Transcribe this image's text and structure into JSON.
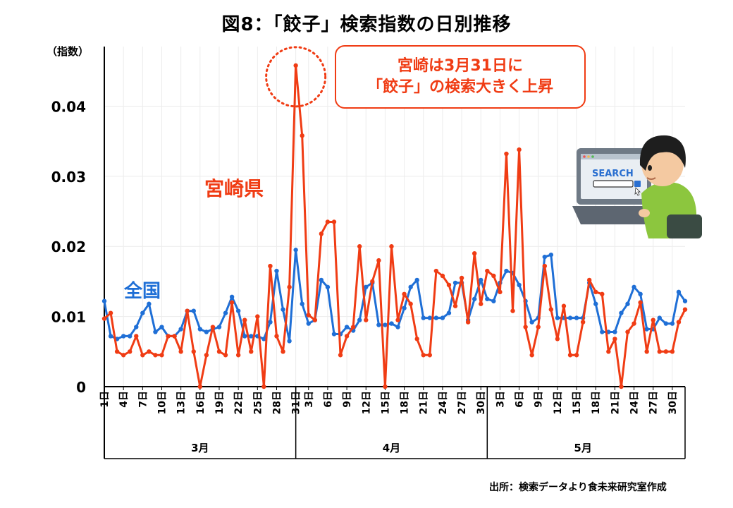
{
  "chart_data": {
    "type": "line",
    "title": "図8：「餃子」検索指数の日別推移",
    "ylabel": "（指数）",
    "ylim": [
      0,
      0.04
    ],
    "yticks": [
      {
        "value": 0,
        "label": "0"
      },
      {
        "value": 0.01,
        "label": "0.01"
      },
      {
        "value": 0.02,
        "label": "0.02"
      },
      {
        "value": 0.03,
        "label": "0.03"
      },
      {
        "value": 0.04,
        "label": "0.04"
      }
    ],
    "grid": true,
    "x_tick_labels": [
      {
        "i": 0,
        "label": "1日"
      },
      {
        "i": 3,
        "label": "4日"
      },
      {
        "i": 6,
        "label": "7日"
      },
      {
        "i": 9,
        "label": "10日"
      },
      {
        "i": 12,
        "label": "13日"
      },
      {
        "i": 15,
        "label": "16日"
      },
      {
        "i": 18,
        "label": "19日"
      },
      {
        "i": 21,
        "label": "22日"
      },
      {
        "i": 24,
        "label": "25日"
      },
      {
        "i": 27,
        "label": "28日"
      },
      {
        "i": 30,
        "label": "31日"
      },
      {
        "i": 32,
        "label": "3日"
      },
      {
        "i": 35,
        "label": "6日"
      },
      {
        "i": 38,
        "label": "9日"
      },
      {
        "i": 41,
        "label": "12日"
      },
      {
        "i": 44,
        "label": "15日"
      },
      {
        "i": 47,
        "label": "18日"
      },
      {
        "i": 50,
        "label": "21日"
      },
      {
        "i": 53,
        "label": "24日"
      },
      {
        "i": 56,
        "label": "27日"
      },
      {
        "i": 59,
        "label": "30日"
      },
      {
        "i": 62,
        "label": "3日"
      },
      {
        "i": 65,
        "label": "6日"
      },
      {
        "i": 68,
        "label": "9日"
      },
      {
        "i": 71,
        "label": "12日"
      },
      {
        "i": 74,
        "label": "15日"
      },
      {
        "i": 77,
        "label": "18日"
      },
      {
        "i": 80,
        "label": "21日"
      },
      {
        "i": 83,
        "label": "24日"
      },
      {
        "i": 86,
        "label": "27日"
      },
      {
        "i": 89,
        "label": "30日"
      }
    ],
    "months": [
      {
        "label": "3月",
        "start": 0,
        "end": 31
      },
      {
        "label": "4月",
        "start": 31,
        "end": 61
      },
      {
        "label": "5月",
        "start": 61,
        "end": 91
      }
    ],
    "series": [
      {
        "name": "宮崎県",
        "color": "#f03c14",
        "values": [
          0.0097,
          0.0105,
          0.005,
          0.0045,
          0.005,
          0.0072,
          0.0045,
          0.005,
          0.0045,
          0.0045,
          0.0072,
          0.0072,
          0.005,
          0.0108,
          0.005,
          0.0,
          0.0045,
          0.0085,
          0.005,
          0.0045,
          0.012,
          0.0045,
          0.0095,
          0.005,
          0.01,
          0.0,
          0.0172,
          0.0072,
          0.005,
          0.0142,
          0.0458,
          0.0358,
          0.0102,
          0.0095,
          0.0218,
          0.0235,
          0.0235,
          0.0045,
          0.0072,
          0.0085,
          0.02,
          0.0095,
          0.015,
          0.018,
          0.0,
          0.02,
          0.0095,
          0.0132,
          0.0118,
          0.0068,
          0.0045,
          0.0045,
          0.0165,
          0.0158,
          0.0145,
          0.0115,
          0.0155,
          0.0092,
          0.019,
          0.0118,
          0.0165,
          0.0158,
          0.0135,
          0.0332,
          0.0108,
          0.0338,
          0.0085,
          0.0045,
          0.0085,
          0.0172,
          0.011,
          0.0068,
          0.0115,
          0.0045,
          0.0045,
          0.0092,
          0.0152,
          0.0135,
          0.0132,
          0.005,
          0.0068,
          0.0,
          0.0078,
          0.009,
          0.012,
          0.005,
          0.0095,
          0.005,
          0.005,
          0.005,
          0.0092,
          0.011
        ]
      },
      {
        "name": "全国",
        "color": "#1f6fd6",
        "values": [
          0.0122,
          0.0072,
          0.0068,
          0.0072,
          0.0072,
          0.0085,
          0.0105,
          0.0118,
          0.0078,
          0.0085,
          0.0072,
          0.0072,
          0.0082,
          0.0108,
          0.0108,
          0.0082,
          0.0078,
          0.0082,
          0.0085,
          0.0105,
          0.0128,
          0.0108,
          0.0072,
          0.0072,
          0.0072,
          0.0068,
          0.0092,
          0.0165,
          0.011,
          0.0065,
          0.0195,
          0.0118,
          0.009,
          0.0095,
          0.0152,
          0.0142,
          0.0075,
          0.0075,
          0.0085,
          0.008,
          0.0095,
          0.0142,
          0.0148,
          0.0088,
          0.0088,
          0.009,
          0.0085,
          0.0112,
          0.0142,
          0.0152,
          0.0098,
          0.0098,
          0.0098,
          0.0098,
          0.0105,
          0.0148,
          0.0148,
          0.0095,
          0.0125,
          0.0152,
          0.0125,
          0.0122,
          0.0148,
          0.0165,
          0.0162,
          0.0145,
          0.0122,
          0.0092,
          0.0098,
          0.0185,
          0.0188,
          0.0098,
          0.0098,
          0.0098,
          0.0098,
          0.0098,
          0.0148,
          0.0118,
          0.0078,
          0.0078,
          0.0078,
          0.0105,
          0.0118,
          0.0142,
          0.0132,
          0.0082,
          0.0082,
          0.0098,
          0.009,
          0.009,
          0.0135,
          0.0122
        ]
      }
    ],
    "annotation_lines": [
      "宮崎は3月31日に",
      "「餃子」の検索大きく上昇"
    ],
    "highlight_point": {
      "series": 0,
      "i": 30
    }
  },
  "labels": {
    "title": "図8：「餃子」検索指数の日別推移",
    "y_unit": "（指数）",
    "source": "出所：検索データより食未来研究室作成",
    "series_miyazaki": "宮崎県",
    "series_zenkoku": "全国",
    "callout_line1": "宮崎は3月31日に",
    "callout_line2": "「餃子」の検索大きく上昇",
    "illustration_text": "SEARCH"
  },
  "colors": {
    "miyazaki": "#f03c14",
    "zenkoku": "#1f6fd6",
    "grid": "#ececec",
    "axis": "#000000"
  }
}
